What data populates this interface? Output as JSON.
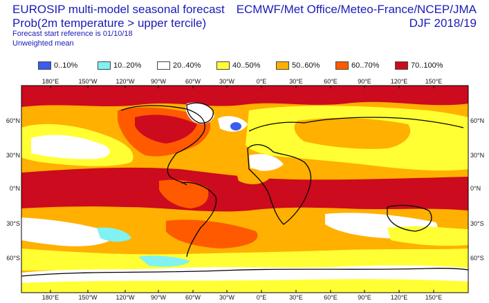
{
  "header": {
    "title": "EUROSIP multi-model seasonal forecast",
    "subtitle": "Prob(2m temperature > upper tercile)",
    "reference": "Forecast start reference is 01/10/18",
    "weighting": "Unweighted mean",
    "source": "ECMWF/Met Office/Meteo-France/NCEP/JMA",
    "season": "DJF 2018/19"
  },
  "legend": [
    {
      "label": "0..10%",
      "color": "#3a5cf0"
    },
    {
      "label": "10..20%",
      "color": "#80f2f2"
    },
    {
      "label": "20..40%",
      "color": "#ffffff"
    },
    {
      "label": "40..50%",
      "color": "#ffff33"
    },
    {
      "label": "50..60%",
      "color": "#ffb000"
    },
    {
      "label": "60..70%",
      "color": "#ff5a00"
    },
    {
      "label": "70..100%",
      "color": "#cc0b1e"
    }
  ],
  "axes": {
    "lon_top": [
      "180°E",
      "150°W",
      "120°W",
      "90°W",
      "60°W",
      "30°W",
      "0°E",
      "30°E",
      "60°E",
      "90°E",
      "120°E",
      "150°E"
    ],
    "lon_bottom": [
      "180°E",
      "150°W",
      "120°W",
      "90°W",
      "60°W",
      "30°W",
      "0°E",
      "30°E",
      "60°E",
      "90°E",
      "120°E",
      "150°E"
    ],
    "lat_left": [
      "60°N",
      "30°N",
      "0°N",
      "30°S",
      "60°S"
    ],
    "lat_right": [
      "60°N",
      "30°N",
      "0°N",
      "30°S",
      "60°S"
    ]
  }
}
